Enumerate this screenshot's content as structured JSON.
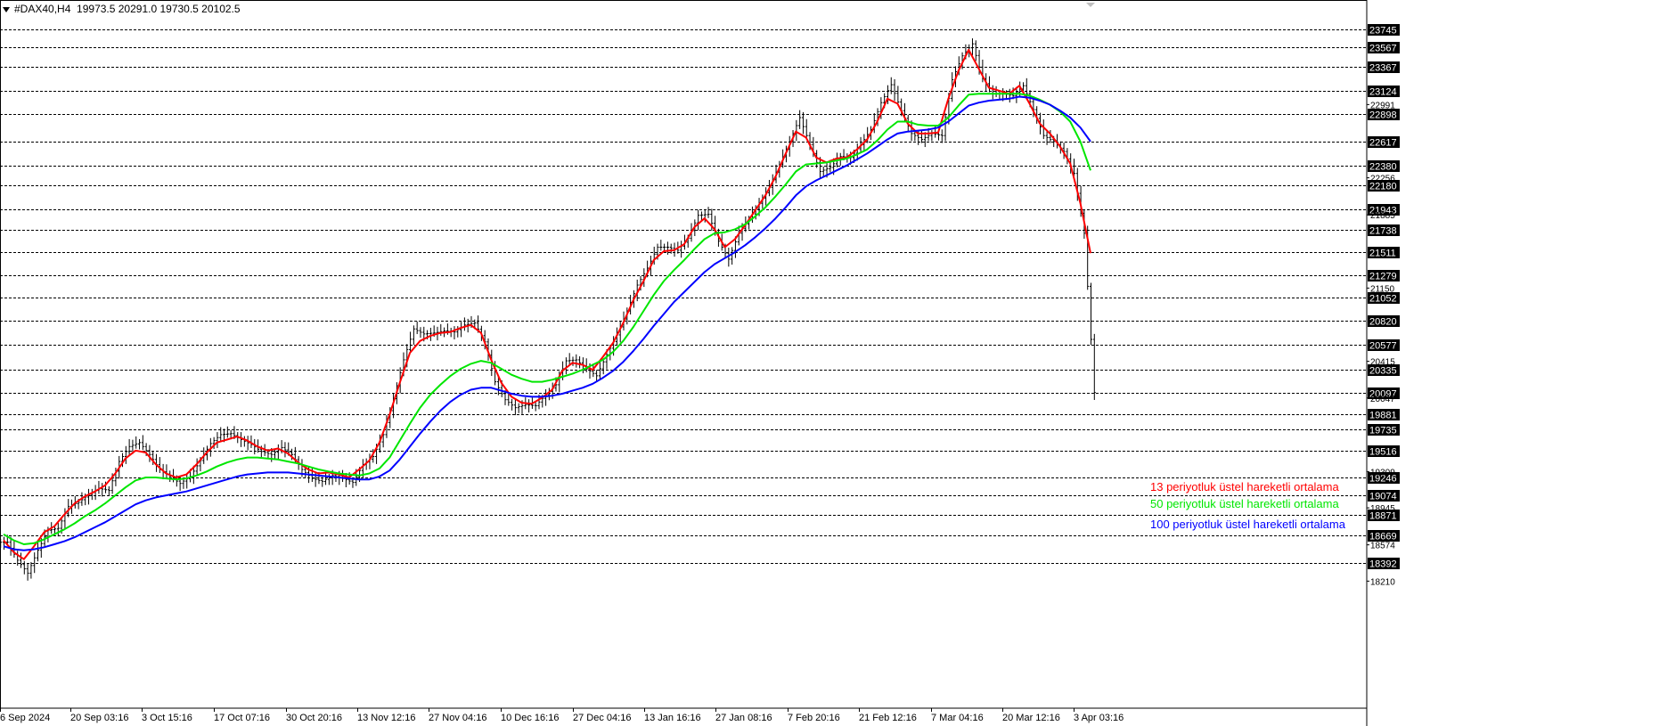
{
  "header": {
    "symbol": "#DAX40,H4",
    "ohlc": "19973.5 20291.0 19730.5 20102.5"
  },
  "colors": {
    "candle": "#000000",
    "ema13": "#ff0000",
    "ema50": "#00e600",
    "ema100": "#0000ff",
    "level_line": "#000000",
    "price_tag_bg": "#000000",
    "price_tag_text": "#ffffff"
  },
  "chart_data": {
    "type": "line",
    "title": "",
    "ylim": [
      18100,
      23950
    ],
    "xlabel": "",
    "ylabel": "",
    "grid": false,
    "time_labels": [
      "6 Sep 2024",
      "20 Sep 03:16",
      "3 Oct 15:16",
      "17 Oct 07:16",
      "30 Oct 20:16",
      "13 Nov 12:16",
      "27 Nov 04:16",
      "10 Dec 16:16",
      "27 Dec 04:16",
      "13 Jan 16:16",
      "27 Jan 08:16",
      "7 Feb 20:16",
      "21 Feb 12:16",
      "7 Mar 04:16",
      "20 Mar 12:16",
      "3 Apr 03:16"
    ],
    "horizontal_levels": [
      23745,
      23567,
      23367,
      23124,
      22898,
      22617,
      22380,
      22180,
      21943,
      21738,
      21511,
      21279,
      21052,
      20820,
      20577,
      20335,
      20097,
      19881,
      19735,
      19516,
      19246,
      19074,
      18871,
      18669,
      18392
    ],
    "axis_ticks": [
      22991,
      22256,
      21885,
      21150,
      20415,
      20047,
      19309,
      18945,
      18574,
      18210
    ],
    "series": [
      {
        "name": "13 periyotluk üstel hareketli ortalama",
        "color": "#ff0000",
        "values": [
          18620,
          18500,
          18430,
          18560,
          18700,
          18760,
          18880,
          18990,
          19060,
          19110,
          19170,
          19290,
          19440,
          19520,
          19500,
          19380,
          19290,
          19250,
          19280,
          19380,
          19500,
          19600,
          19630,
          19660,
          19620,
          19560,
          19520,
          19540,
          19490,
          19400,
          19330,
          19290,
          19300,
          19280,
          19250,
          19330,
          19420,
          19600,
          19880,
          20200,
          20500,
          20620,
          20670,
          20700,
          20710,
          20750,
          20780,
          20700,
          20430,
          20200,
          20060,
          20000,
          19990,
          20050,
          20130,
          20320,
          20400,
          20380,
          20330,
          20460,
          20600,
          20800,
          21030,
          21220,
          21430,
          21520,
          21530,
          21590,
          21760,
          21850,
          21740,
          21560,
          21640,
          21780,
          21930,
          22080,
          22270,
          22500,
          22720,
          22660,
          22460,
          22410,
          22450,
          22460,
          22540,
          22640,
          22820,
          23050,
          23000,
          22800,
          22700,
          22700,
          22710,
          23050,
          23330,
          23540,
          23350,
          23160,
          23130,
          23100,
          23180,
          23000,
          22800,
          22700,
          22570,
          22400,
          22000,
          21500
        ]
      },
      {
        "name": "50 periyotluk üstel hareketli ortalama",
        "color": "#00e600",
        "values": [
          18680,
          18620,
          18580,
          18590,
          18630,
          18680,
          18730,
          18790,
          18860,
          18920,
          18990,
          19070,
          19150,
          19220,
          19250,
          19250,
          19240,
          19230,
          19240,
          19270,
          19310,
          19360,
          19400,
          19430,
          19450,
          19450,
          19440,
          19430,
          19410,
          19390,
          19360,
          19330,
          19310,
          19290,
          19280,
          19270,
          19290,
          19340,
          19450,
          19620,
          19790,
          19950,
          20080,
          20180,
          20270,
          20340,
          20390,
          20420,
          20400,
          20340,
          20280,
          20240,
          20210,
          20210,
          20230,
          20260,
          20290,
          20330,
          20380,
          20430,
          20510,
          20620,
          20760,
          20920,
          21080,
          21220,
          21330,
          21430,
          21540,
          21640,
          21700,
          21710,
          21740,
          21790,
          21870,
          21960,
          22070,
          22190,
          22320,
          22390,
          22400,
          22410,
          22430,
          22450,
          22490,
          22540,
          22630,
          22740,
          22820,
          22820,
          22790,
          22780,
          22780,
          22860,
          22980,
          23090,
          23100,
          23100,
          23100,
          23100,
          23100,
          23080,
          23040,
          22990,
          22920,
          22820,
          22620,
          22330
        ]
      },
      {
        "name": "100 periyotluk üstel hareketli ortalama",
        "color": "#0000ff",
        "values": [
          18560,
          18530,
          18520,
          18530,
          18550,
          18580,
          18610,
          18650,
          18700,
          18750,
          18800,
          18860,
          18920,
          18980,
          19020,
          19050,
          19070,
          19090,
          19110,
          19140,
          19170,
          19200,
          19230,
          19260,
          19280,
          19290,
          19300,
          19300,
          19300,
          19290,
          19280,
          19270,
          19260,
          19250,
          19240,
          19230,
          19230,
          19260,
          19320,
          19430,
          19560,
          19690,
          19810,
          19920,
          20010,
          20080,
          20130,
          20150,
          20150,
          20120,
          20090,
          20070,
          20060,
          20060,
          20070,
          20090,
          20120,
          20150,
          20190,
          20250,
          20320,
          20410,
          20520,
          20640,
          20770,
          20890,
          21010,
          21110,
          21210,
          21310,
          21390,
          21450,
          21510,
          21580,
          21660,
          21750,
          21850,
          21960,
          22080,
          22170,
          22230,
          22280,
          22330,
          22380,
          22440,
          22500,
          22570,
          22640,
          22700,
          22720,
          22730,
          22740,
          22760,
          22820,
          22900,
          22980,
          23010,
          23030,
          23040,
          23050,
          23070,
          23060,
          23030,
          22990,
          22930,
          22860,
          22760,
          22620
        ]
      }
    ],
    "candles_approx_close": [
      18600,
      18420,
      18290,
      18520,
      18720,
      18740,
      18960,
      19000,
      19080,
      19140,
      19120,
      19410,
      19560,
      19600,
      19480,
      19330,
      19260,
      19190,
      19260,
      19420,
      19590,
      19680,
      19690,
      19630,
      19580,
      19510,
      19480,
      19550,
      19480,
      19330,
      19240,
      19210,
      19270,
      19240,
      19200,
      19380,
      19460,
      19680,
      20040,
      20430,
      20740,
      20690,
      20700,
      20720,
      20710,
      20780,
      20800,
      20610,
      20210,
      20030,
      19950,
      19980,
      19970,
      20080,
      20180,
      20420,
      20430,
      20340,
      20270,
      20480,
      20680,
      20920,
      21180,
      21350,
      21560,
      21560,
      21530,
      21650,
      21880,
      21890,
      21620,
      21440,
      21700,
      21840,
      22000,
      22160,
      22390,
      22620,
      22860,
      22590,
      22320,
      22360,
      22470,
      22460,
      22590,
      22740,
      23010,
      23190,
      22930,
      22700,
      22640,
      22700,
      22680,
      23240,
      23480,
      23600,
      23250,
      23100,
      23100,
      23080,
      23180,
      22940,
      22680,
      22620,
      22520,
      22300,
      21700,
      20102.5
    ]
  },
  "legend": {
    "ema13": "13 periyotluk üstel hareketli ortalama",
    "ema50": "50 periyotluk üstel hareketli ortalama",
    "ema100": "100 periyotluk üstel hareketli ortalama"
  }
}
